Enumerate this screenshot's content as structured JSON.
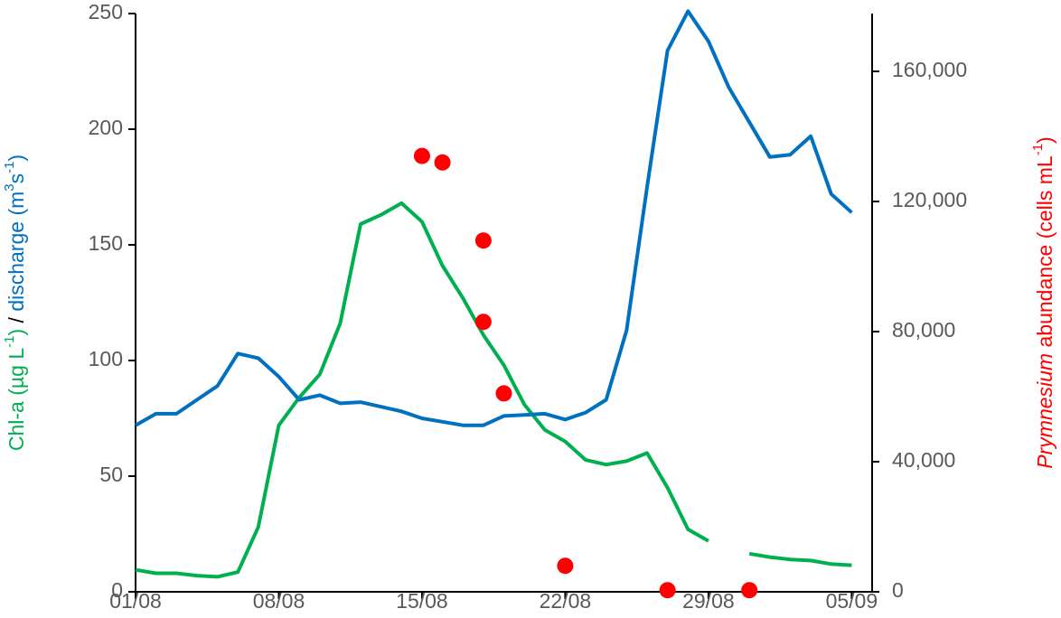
{
  "chart_data": {
    "type": "line",
    "categories": [
      "01/08",
      null,
      null,
      null,
      null,
      null,
      null,
      "08/08",
      null,
      null,
      null,
      null,
      null,
      null,
      "15/08",
      null,
      null,
      null,
      null,
      null,
      null,
      "22/08",
      null,
      null,
      null,
      null,
      null,
      null,
      "29/08",
      null,
      null,
      null,
      null,
      null,
      null,
      "05/09",
      null
    ],
    "ylim": [
      0,
      250
    ],
    "yticks": [
      0,
      50,
      100,
      150,
      200,
      250
    ],
    "y2lim": [
      0,
      177778
    ],
    "y2ticks": [
      0,
      {
        "value": 40000,
        "label": "40,000"
      },
      {
        "value": 80000,
        "label": "80,000"
      },
      {
        "value": 120000,
        "label": "120,000"
      },
      {
        "value": 160000,
        "label": "160,000"
      }
    ],
    "y_label": [
      {
        "text": "Chl-a (µg L",
        "color": "#00b050"
      },
      {
        "text": "-1",
        "color": "#00b050",
        "style": "sup"
      },
      {
        "text": ")",
        "color": "#00b050"
      },
      {
        "text": " / ",
        "color": "#000000"
      },
      {
        "text": "discharge (m",
        "color": "#0070c0"
      },
      {
        "text": "3",
        "color": "#0070c0",
        "style": "sup"
      },
      {
        "text": "s",
        "color": "#0070c0"
      },
      {
        "text": "-1",
        "color": "#0070c0",
        "style": "sup"
      },
      {
        "text": ")",
        "color": "#0070c0"
      }
    ],
    "y2_label": [
      {
        "text": "Prymnesium",
        "color": "#ff0000",
        "style": "italic"
      },
      {
        "text": " abundance (cells mL",
        "color": "#ff0000"
      },
      {
        "text": "-1",
        "color": "#ff0000",
        "style": "sup"
      },
      {
        "text": ")",
        "color": "#ff0000"
      }
    ],
    "series": [
      {
        "color": "#00b050",
        "values": [
          9.5,
          8,
          8,
          7,
          6.5,
          8.5,
          28,
          72,
          84,
          94,
          116,
          159,
          163,
          168,
          160,
          141,
          127,
          111,
          98,
          81,
          70,
          65,
          57,
          55,
          56.5,
          60,
          45,
          27,
          22,
          null,
          16.5,
          15,
          14,
          13.5,
          12,
          11.5,
          null
        ]
      },
      {
        "color": "#0070c0",
        "values": [
          72,
          77,
          77,
          83,
          89,
          103,
          101,
          93,
          83,
          85,
          81.5,
          82,
          80,
          78,
          75,
          73.5,
          72,
          72,
          76,
          76.5,
          77,
          74.5,
          77.5,
          83,
          113,
          175,
          234,
          251,
          238,
          218,
          203,
          188,
          189,
          197,
          172,
          164,
          null
        ]
      },
      {
        "type": "scatter",
        "axis": "y2",
        "color": "#ff0000",
        "x": [
          "15/08",
          "16/08",
          "18/08",
          "18/08",
          "19/08",
          "22/08",
          "27/08",
          "31/08"
        ],
        "values": [
          134000,
          132000,
          108000,
          83000,
          61000,
          8000,
          500,
          500
        ]
      }
    ]
  }
}
